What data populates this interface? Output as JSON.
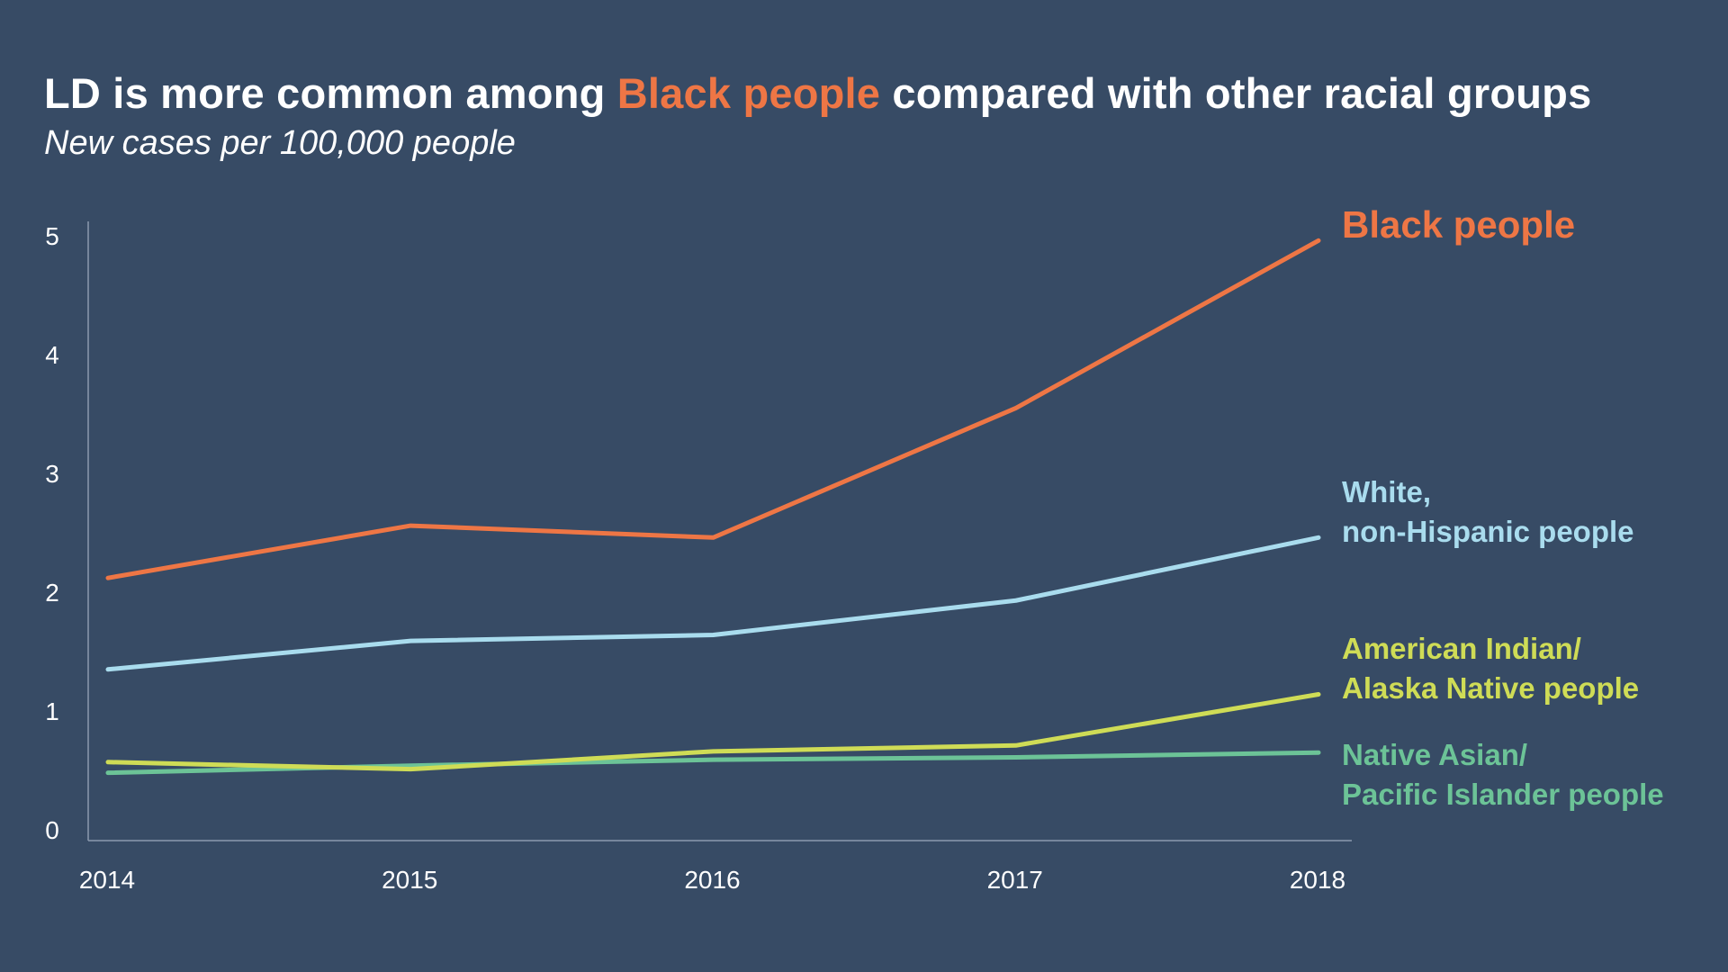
{
  "title": {
    "prefix": "LD is more common among ",
    "highlight": "Black people",
    "suffix": " compared with other racial groups"
  },
  "subtitle": "New cases per 100,000 people",
  "colors": {
    "background": "#374b65",
    "black": "#ee7645",
    "white": "#a9dcee",
    "aian": "#cfdc56",
    "napi": "#6cc397",
    "axis": "#8c9aae",
    "text": "#ffffff"
  },
  "labels": {
    "black": {
      "line1": "Black people"
    },
    "white": {
      "line1": "White,",
      "line2": "non-Hispanic people"
    },
    "aian": {
      "line1": "American Indian/",
      "line2": "Alaska Native people"
    },
    "napi": {
      "line1": "Native Asian/",
      "line2": "Pacific Islander people"
    }
  },
  "chart_data": {
    "type": "line",
    "title": "LD is more common among Black people compared with other racial groups",
    "subtitle": "New cases per 100,000 people",
    "x": [
      "2014",
      "2015",
      "2016",
      "2017",
      "2018"
    ],
    "ylim": [
      0,
      5
    ],
    "yticks": [
      0,
      1,
      2,
      3,
      4,
      5
    ],
    "grid": false,
    "legend": "direct labels at right end of lines",
    "series": [
      {
        "key": "black",
        "name": "Black people",
        "color": "#ee7645",
        "values": [
          2.12,
          2.56,
          2.46,
          3.55,
          4.96
        ]
      },
      {
        "key": "white",
        "name": "White, non-Hispanic people",
        "color": "#a9dcee",
        "values": [
          1.35,
          1.59,
          1.64,
          1.93,
          2.46
        ]
      },
      {
        "key": "aian",
        "name": "American Indian/ Alaska Native people",
        "color": "#cfdc56",
        "values": [
          0.57,
          0.51,
          0.66,
          0.71,
          1.14
        ]
      },
      {
        "key": "napi",
        "name": "Native Asian/ Pacific Islander people",
        "color": "#6cc397",
        "values": [
          0.48,
          0.54,
          0.59,
          0.61,
          0.65
        ]
      }
    ]
  }
}
